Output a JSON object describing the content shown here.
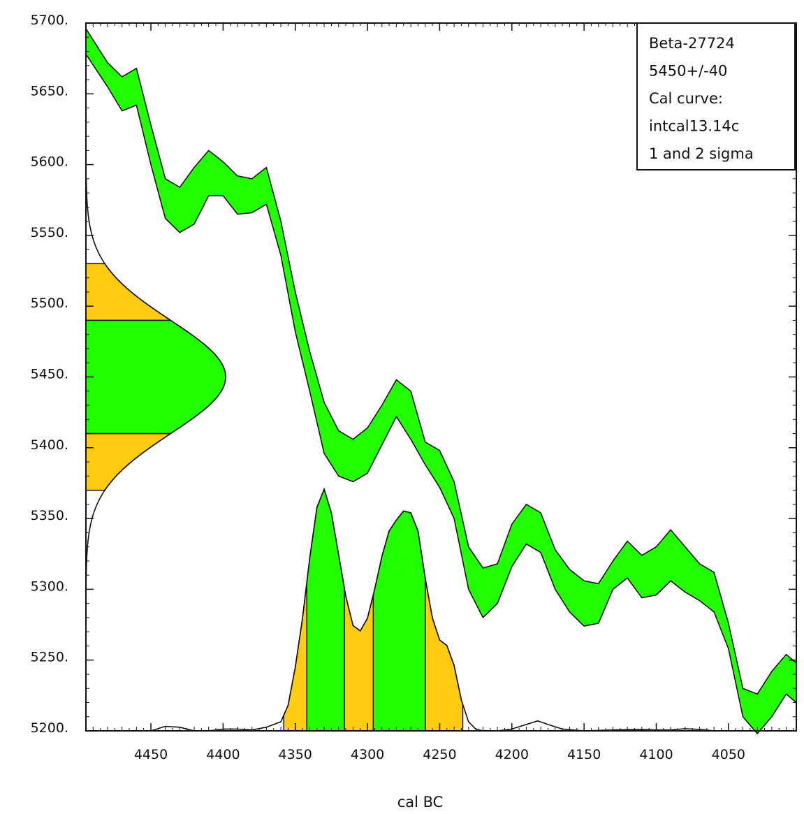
{
  "chart_data": {
    "type": "area",
    "xlabel": "cal BC",
    "ylabel": "",
    "xlim": [
      4495,
      4003
    ],
    "ylim": [
      5200,
      5700
    ],
    "x_ticks": [
      4450,
      4400,
      4350,
      4300,
      4250,
      4200,
      4150,
      4100,
      4050
    ],
    "x_tick_labels": [
      "4450",
      "4400",
      "4350",
      "4300",
      "4250",
      "4200",
      "4150",
      "4100",
      "4050"
    ],
    "y_ticks": [
      5200,
      5250,
      5300,
      5350,
      5400,
      5450,
      5500,
      5550,
      5600,
      5650,
      5700
    ],
    "y_tick_labels": [
      "5200.",
      "5250.",
      "5300.",
      "5350.",
      "5400.",
      "5450.",
      "5500.",
      "5550.",
      "5600.",
      "5650.",
      "5700."
    ],
    "legend": {
      "placement": "top-right",
      "lines": [
        "Beta-27724",
        "5450+/-40",
        "Cal curve:",
        "intcal13.14c",
        "1 and 2 sigma"
      ]
    },
    "calibration_curve": {
      "name": "intcal13.14c",
      "x": [
        4495,
        4480,
        4470,
        4460,
        4450,
        4440,
        4430,
        4420,
        4410,
        4400,
        4390,
        4380,
        4370,
        4360,
        4350,
        4340,
        4330,
        4320,
        4310,
        4300,
        4290,
        4280,
        4270,
        4260,
        4250,
        4240,
        4230,
        4220,
        4210,
        4200,
        4190,
        4180,
        4170,
        4160,
        4150,
        4140,
        4130,
        4120,
        4110,
        4100,
        4090,
        4080,
        4070,
        4060,
        4050,
        4040,
        4030,
        4020,
        4010,
        4003
      ],
      "upper": [
        5696,
        5672,
        5662,
        5668,
        5628,
        5590,
        5584,
        5598,
        5610,
        5602,
        5592,
        5590,
        5598,
        5560,
        5510,
        5468,
        5432,
        5412,
        5406,
        5414,
        5430,
        5448,
        5440,
        5404,
        5398,
        5376,
        5330,
        5315,
        5318,
        5346,
        5360,
        5354,
        5328,
        5314,
        5306,
        5304,
        5320,
        5334,
        5324,
        5330,
        5342,
        5330,
        5318,
        5312,
        5276,
        5230,
        5226,
        5242,
        5254,
        5248
      ],
      "lower": [
        5678,
        5655,
        5638,
        5642,
        5600,
        5562,
        5552,
        5558,
        5578,
        5578,
        5565,
        5566,
        5572,
        5536,
        5482,
        5440,
        5396,
        5380,
        5376,
        5382,
        5402,
        5422,
        5406,
        5388,
        5372,
        5350,
        5300,
        5280,
        5290,
        5316,
        5332,
        5326,
        5300,
        5284,
        5274,
        5276,
        5300,
        5308,
        5294,
        5296,
        5306,
        5298,
        5292,
        5284,
        5258,
        5210,
        5198,
        5210,
        5226,
        5220
      ]
    },
    "radiocarbon_date": {
      "mean_bp": 5450,
      "sigma": 40,
      "one_sigma_range": [
        5410,
        5490
      ],
      "two_sigma_range": [
        5370,
        5530
      ]
    },
    "calibrated_distribution": {
      "x": [
        4495,
        4470,
        4450,
        4440,
        4430,
        4420,
        4410,
        4400,
        4390,
        4380,
        4370,
        4360,
        4355,
        4350,
        4345,
        4340,
        4335,
        4330,
        4325,
        4320,
        4315,
        4310,
        4305,
        4300,
        4295,
        4290,
        4285,
        4280,
        4275,
        4270,
        4265,
        4260,
        4255,
        4250,
        4245,
        4240,
        4235,
        4230,
        4225,
        4220,
        4210,
        4200,
        4190,
        4182,
        4175,
        4165,
        4150,
        4130,
        4110,
        4100,
        4090,
        4080,
        4070,
        4060,
        4040,
        4020,
        4003
      ],
      "y": [
        0,
        0,
        0,
        0.025,
        0.02,
        0,
        0,
        0.01,
        0.01,
        0.005,
        0.02,
        0.05,
        0.14,
        0.35,
        0.62,
        0.95,
        1.23,
        1.33,
        1.2,
        0.97,
        0.74,
        0.58,
        0.55,
        0.62,
        0.78,
        0.96,
        1.1,
        1.16,
        1.21,
        1.2,
        1.1,
        0.84,
        0.62,
        0.5,
        0.47,
        0.36,
        0.17,
        0.05,
        0.01,
        0,
        0,
        0.01,
        0.035,
        0.055,
        0.035,
        0.01,
        0,
        0.005,
        0.008,
        0.005,
        0.005,
        0.012,
        0.008,
        0,
        0,
        0,
        0
      ],
      "one_sigma_ranges": [
        [
          4342,
          4316
        ],
        [
          4296,
          4260
        ]
      ],
      "two_sigma_ranges": [
        [
          4358,
          4234
        ]
      ]
    },
    "grid": false,
    "colors": {
      "one_sigma_fill": "#22ff00",
      "two_sigma_fill": "#ffcc11",
      "curve_band_fill": "#22ff00",
      "outline": "#111111"
    }
  }
}
